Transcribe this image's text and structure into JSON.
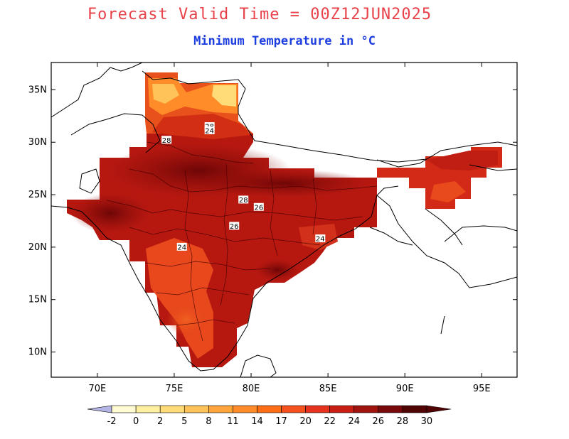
{
  "header": {
    "title": "Forecast Valid Time = 00Z12JUN2025",
    "subtitle": "Minimum Temperature in °C",
    "title_color": "#e8424a",
    "subtitle_color": "#1e3fe0"
  },
  "map": {
    "lon_range": [
      67,
      97.3
    ],
    "lat_range": [
      7.6,
      37.6
    ],
    "lon_ticks": [
      {
        "v": 70,
        "label": "70E"
      },
      {
        "v": 75,
        "label": "75E"
      },
      {
        "v": 80,
        "label": "80E"
      },
      {
        "v": 85,
        "label": "85E"
      },
      {
        "v": 90,
        "label": "90E"
      },
      {
        "v": 95,
        "label": "95E"
      }
    ],
    "lat_ticks": [
      {
        "v": 10,
        "label": "10N"
      },
      {
        "v": 15,
        "label": "15N"
      },
      {
        "v": 20,
        "label": "20N"
      },
      {
        "v": 25,
        "label": "25N"
      },
      {
        "v": 30,
        "label": "30N"
      },
      {
        "v": 35,
        "label": "35N"
      }
    ],
    "contour_labels": [
      {
        "text": "28",
        "lon": 77.3,
        "lat": 31.5
      },
      {
        "text": "24",
        "lon": 77.3,
        "lat": 31.1
      },
      {
        "text": "28",
        "lon": 74.5,
        "lat": 30.2
      },
      {
        "text": "28",
        "lon": 79.5,
        "lat": 24.5
      },
      {
        "text": "26",
        "lon": 80.5,
        "lat": 23.8
      },
      {
        "text": "26",
        "lon": 78.9,
        "lat": 22.0
      },
      {
        "text": "24",
        "lon": 75.5,
        "lat": 20.0
      },
      {
        "text": "24",
        "lon": 84.5,
        "lat": 20.8
      }
    ]
  },
  "colorbar": {
    "labels": [
      "-2",
      "0",
      "2",
      "5",
      "8",
      "11",
      "14",
      "17",
      "20",
      "22",
      "24",
      "26",
      "28",
      "30"
    ],
    "colors": [
      "#b4b4e6",
      "#fffbd2",
      "#fff0a0",
      "#ffdc78",
      "#ffc35a",
      "#ffa53c",
      "#ff8c28",
      "#ff6e14",
      "#f5501e",
      "#e6321e",
      "#c81e14",
      "#a01410",
      "#78080a",
      "#500404"
    ]
  }
}
